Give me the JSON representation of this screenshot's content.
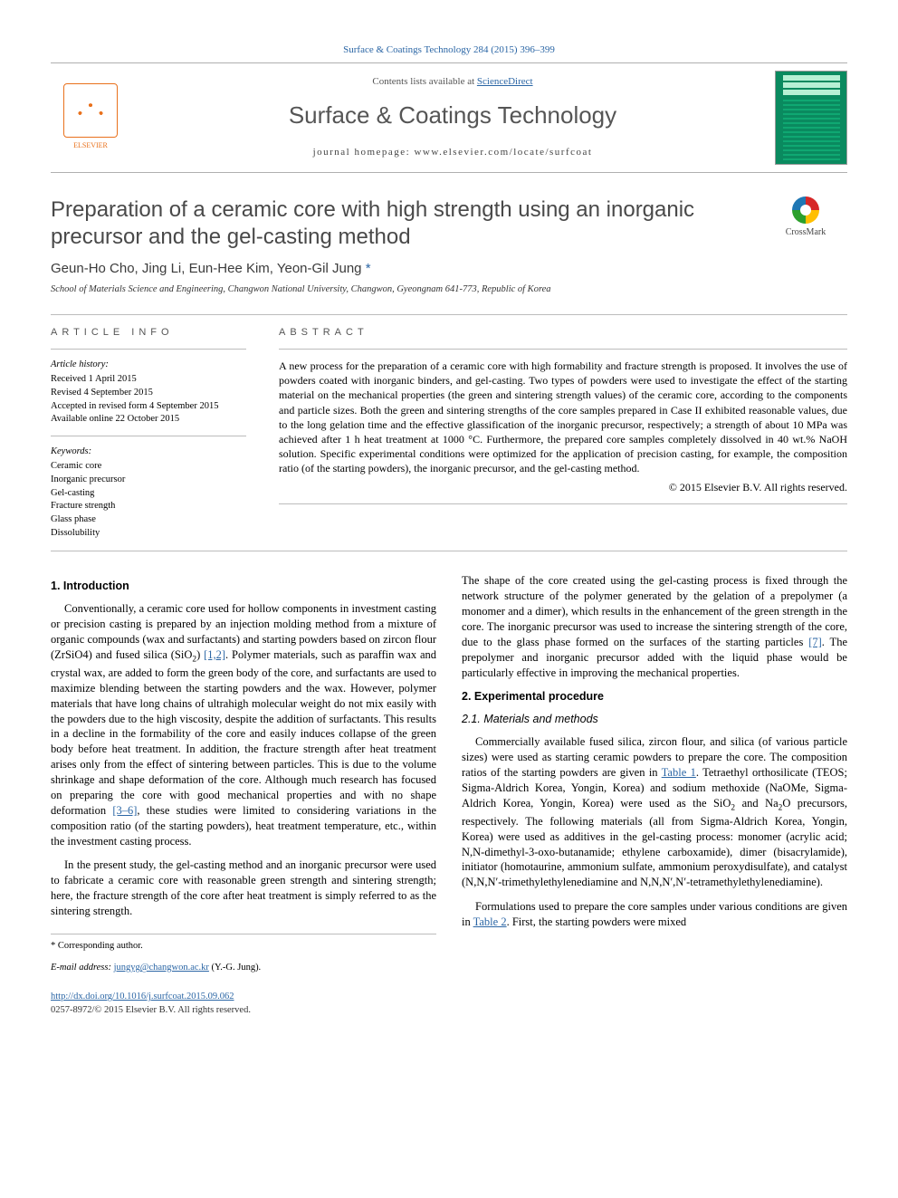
{
  "colors": {
    "link": "#2b66a5",
    "text": "#000000",
    "muted": "#555555",
    "elsevier": "#e9711c",
    "cover_bg": "#0a8a5f",
    "rule": "#bcbcbc"
  },
  "typography": {
    "body_family": "Times New Roman, Times, serif",
    "heading_family": "Arial, Helvetica, sans-serif",
    "title_size_pt": 24,
    "journal_size_pt": 26,
    "body_size_pt": 12.5,
    "small_size_pt": 10.5
  },
  "header": {
    "top_link": "Surface & Coatings Technology 284 (2015) 396–399",
    "contents_prefix": "Contents lists available at ",
    "contents_link": "ScienceDirect",
    "journal_name": "Surface & Coatings Technology",
    "homepage_prefix": "journal homepage: ",
    "homepage_url": "www.elsevier.com/locate/surfcoat",
    "publisher_logo_label": "ELSEVIER",
    "crossmark_label": "CrossMark"
  },
  "article": {
    "title": "Preparation of a ceramic core with high strength using an inorganic precursor and the gel-casting method",
    "authors": "Geun-Ho Cho, Jing Li, Eun-Hee Kim, Yeon-Gil Jung",
    "corr_marker": " *",
    "affiliation": "School of Materials Science and Engineering, Changwon National University, Changwon, Gyeongnam 641-773, Republic of Korea"
  },
  "article_info": {
    "heading": "article info",
    "history_label": "Article history:",
    "history": [
      "Received 1 April 2015",
      "Revised 4 September 2015",
      "Accepted in revised form 4 September 2015",
      "Available online 22 October 2015"
    ],
    "keywords_label": "Keywords:",
    "keywords": [
      "Ceramic core",
      "Inorganic precursor",
      "Gel-casting",
      "Fracture strength",
      "Glass phase",
      "Dissolubility"
    ]
  },
  "abstract": {
    "heading": "abstract",
    "text": "A new process for the preparation of a ceramic core with high formability and fracture strength is proposed. It involves the use of powders coated with inorganic binders, and gel-casting. Two types of powders were used to investigate the effect of the starting material on the mechanical properties (the green and sintering strength values) of the ceramic core, according to the components and particle sizes. Both the green and sintering strengths of the core samples prepared in Case II exhibited reasonable values, due to the long gelation time and the effective glassification of the inorganic precursor, respectively; a strength of about 10 MPa was achieved after 1 h heat treatment at 1000 °C. Furthermore, the prepared core samples completely dissolved in 40 wt.% NaOH solution. Specific experimental conditions were optimized for the application of precision casting, for example, the composition ratio (of the starting powders), the inorganic precursor, and the gel-casting method.",
    "copyright": "© 2015 Elsevier B.V. All rights reserved."
  },
  "body": {
    "s1_heading": "1. Introduction",
    "s1_p1a": "Conventionally, a ceramic core used for hollow components in investment casting or precision casting is prepared by an injection molding method from a mixture of organic compounds (wax and surfactants) and starting powders based on zircon flour (ZrSiO4) and fused silica (SiO",
    "s1_p1b": ") ",
    "s1_p1_ref1": "[1,2]",
    "s1_p1c": ". Polymer materials, such as paraffin wax and crystal wax, are added to form the green body of the core, and surfactants are used to maximize blending between the starting powders and the wax. However, polymer materials that have long chains of ultrahigh molecular weight do not mix easily with the powders due to the high viscosity, despite the addition of surfactants. This results in a decline in the formability of the core and easily induces collapse of the green body before heat treatment. In addition, the fracture strength after heat treatment arises only from the effect of sintering between particles. This is due to the volume shrinkage and shape deformation of the core. Although much research has focused on preparing the core with good mechanical properties and with no shape deformation ",
    "s1_p1_ref2": "[3–6]",
    "s1_p1d": ", these studies were limited to considering variations in the composition ratio (of the starting powders), heat treatment temperature, etc., within the investment casting process.",
    "s1_p2": "In the present study, the gel-casting method and an inorganic precursor were used to fabricate a ceramic core with reasonable green strength and sintering strength; here, the fracture strength of the core after heat treatment is simply referred to as the sintering strength.",
    "s1_p3a": "The shape of the core created using the gel-casting process is fixed through the network structure of the polymer generated by the gelation of a prepolymer (a monomer and a dimer), which results in the enhancement of the green strength in the core. The inorganic precursor was used to increase the sintering strength of the core, due to the glass phase formed on the surfaces of the starting particles ",
    "s1_p3_ref": "[7]",
    "s1_p3b": ". The prepolymer and inorganic precursor added with the liquid phase would be particularly effective in improving the mechanical properties.",
    "s2_heading": "2. Experimental procedure",
    "s21_heading": "2.1. Materials and methods",
    "s21_p1a": "Commercially available fused silica, zircon flour, and silica (of various particle sizes) were used as starting ceramic powders to prepare the core. The composition ratios of the starting powders are given in ",
    "s21_p1_tab1": "Table 1",
    "s21_p1b": ". Tetraethyl orthosilicate (TEOS; Sigma-Aldrich Korea, Yongin, Korea) and sodium methoxide (NaOMe, Sigma-Aldrich Korea, Yongin, Korea) were used as the SiO",
    "s21_p1c": " and Na",
    "s21_p1d": "O precursors, respectively. The following materials (all from Sigma-Aldrich Korea, Yongin, Korea) were used as additives in the gel-casting process: monomer (acrylic acid; N,N-dimethyl-3-oxo-butanamide; ethylene carboxamide), dimer (bisacrylamide), initiator (homotaurine, ammonium sulfate, ammonium peroxydisulfate), and catalyst (N,N,N′-trimethylethylenediamine and N,N,N′,N′-tetramethylethylenediamine).",
    "s21_p2a": "Formulations used to prepare the core samples under various conditions are given in ",
    "s21_p2_tab2": "Table 2",
    "s21_p2b": ". First, the starting powders were mixed"
  },
  "footer": {
    "corr_marker": "* ",
    "corr_label": "Corresponding author.",
    "email_label": "E-mail address: ",
    "email": "jungyg@changwon.ac.kr",
    "email_tail": " (Y.-G. Jung).",
    "doi": "http://dx.doi.org/10.1016/j.surfcoat.2015.09.062",
    "issn_line": "0257-8972/© 2015 Elsevier B.V. All rights reserved."
  }
}
